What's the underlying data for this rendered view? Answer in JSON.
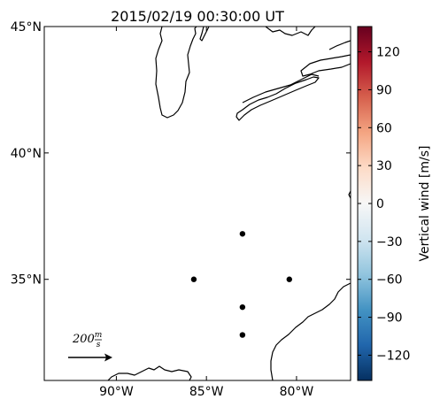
{
  "title": "2015/02/19 00:30:00 UT",
  "map": {
    "lon_range": [
      -94,
      -77
    ],
    "lat_range": [
      31,
      45
    ],
    "x_ticks": [
      {
        "lon": -90,
        "label": "90°W"
      },
      {
        "lon": -85,
        "label": "85°W"
      },
      {
        "lon": -80,
        "label": "80°W"
      }
    ],
    "y_ticks": [
      {
        "lat": 45,
        "label": "45°N"
      },
      {
        "lat": 40,
        "label": "40°N"
      },
      {
        "lat": 35,
        "label": "35°N"
      }
    ],
    "points": [
      {
        "lon": -83.0,
        "lat": 36.8
      },
      {
        "lon": -85.7,
        "lat": 35.0
      },
      {
        "lon": -80.4,
        "lat": 35.0
      },
      {
        "lon": -83.0,
        "lat": 33.9
      },
      {
        "lon": -83.0,
        "lat": 32.8
      }
    ],
    "scale_arrow": {
      "value_text": "200",
      "unit_numerator": "m",
      "unit_denominator": "s"
    }
  },
  "colorbar": {
    "label": "Vertical wind [m/s]",
    "range": [
      -140,
      140
    ],
    "ticks": [
      {
        "value": 120,
        "label": "120"
      },
      {
        "value": 90,
        "label": "90"
      },
      {
        "value": 60,
        "label": "60"
      },
      {
        "value": 30,
        "label": "30"
      },
      {
        "value": 0,
        "label": "0"
      },
      {
        "value": -30,
        "label": "−30"
      },
      {
        "value": -60,
        "label": "−60"
      },
      {
        "value": -90,
        "label": "−90"
      },
      {
        "value": -120,
        "label": "−120"
      }
    ],
    "colormap": [
      "#053061",
      "#2166ac",
      "#4393c3",
      "#92c5de",
      "#d1e5f0",
      "#f7f7f7",
      "#fddbc7",
      "#f4a582",
      "#d6604d",
      "#b2182b",
      "#67001f"
    ]
  }
}
